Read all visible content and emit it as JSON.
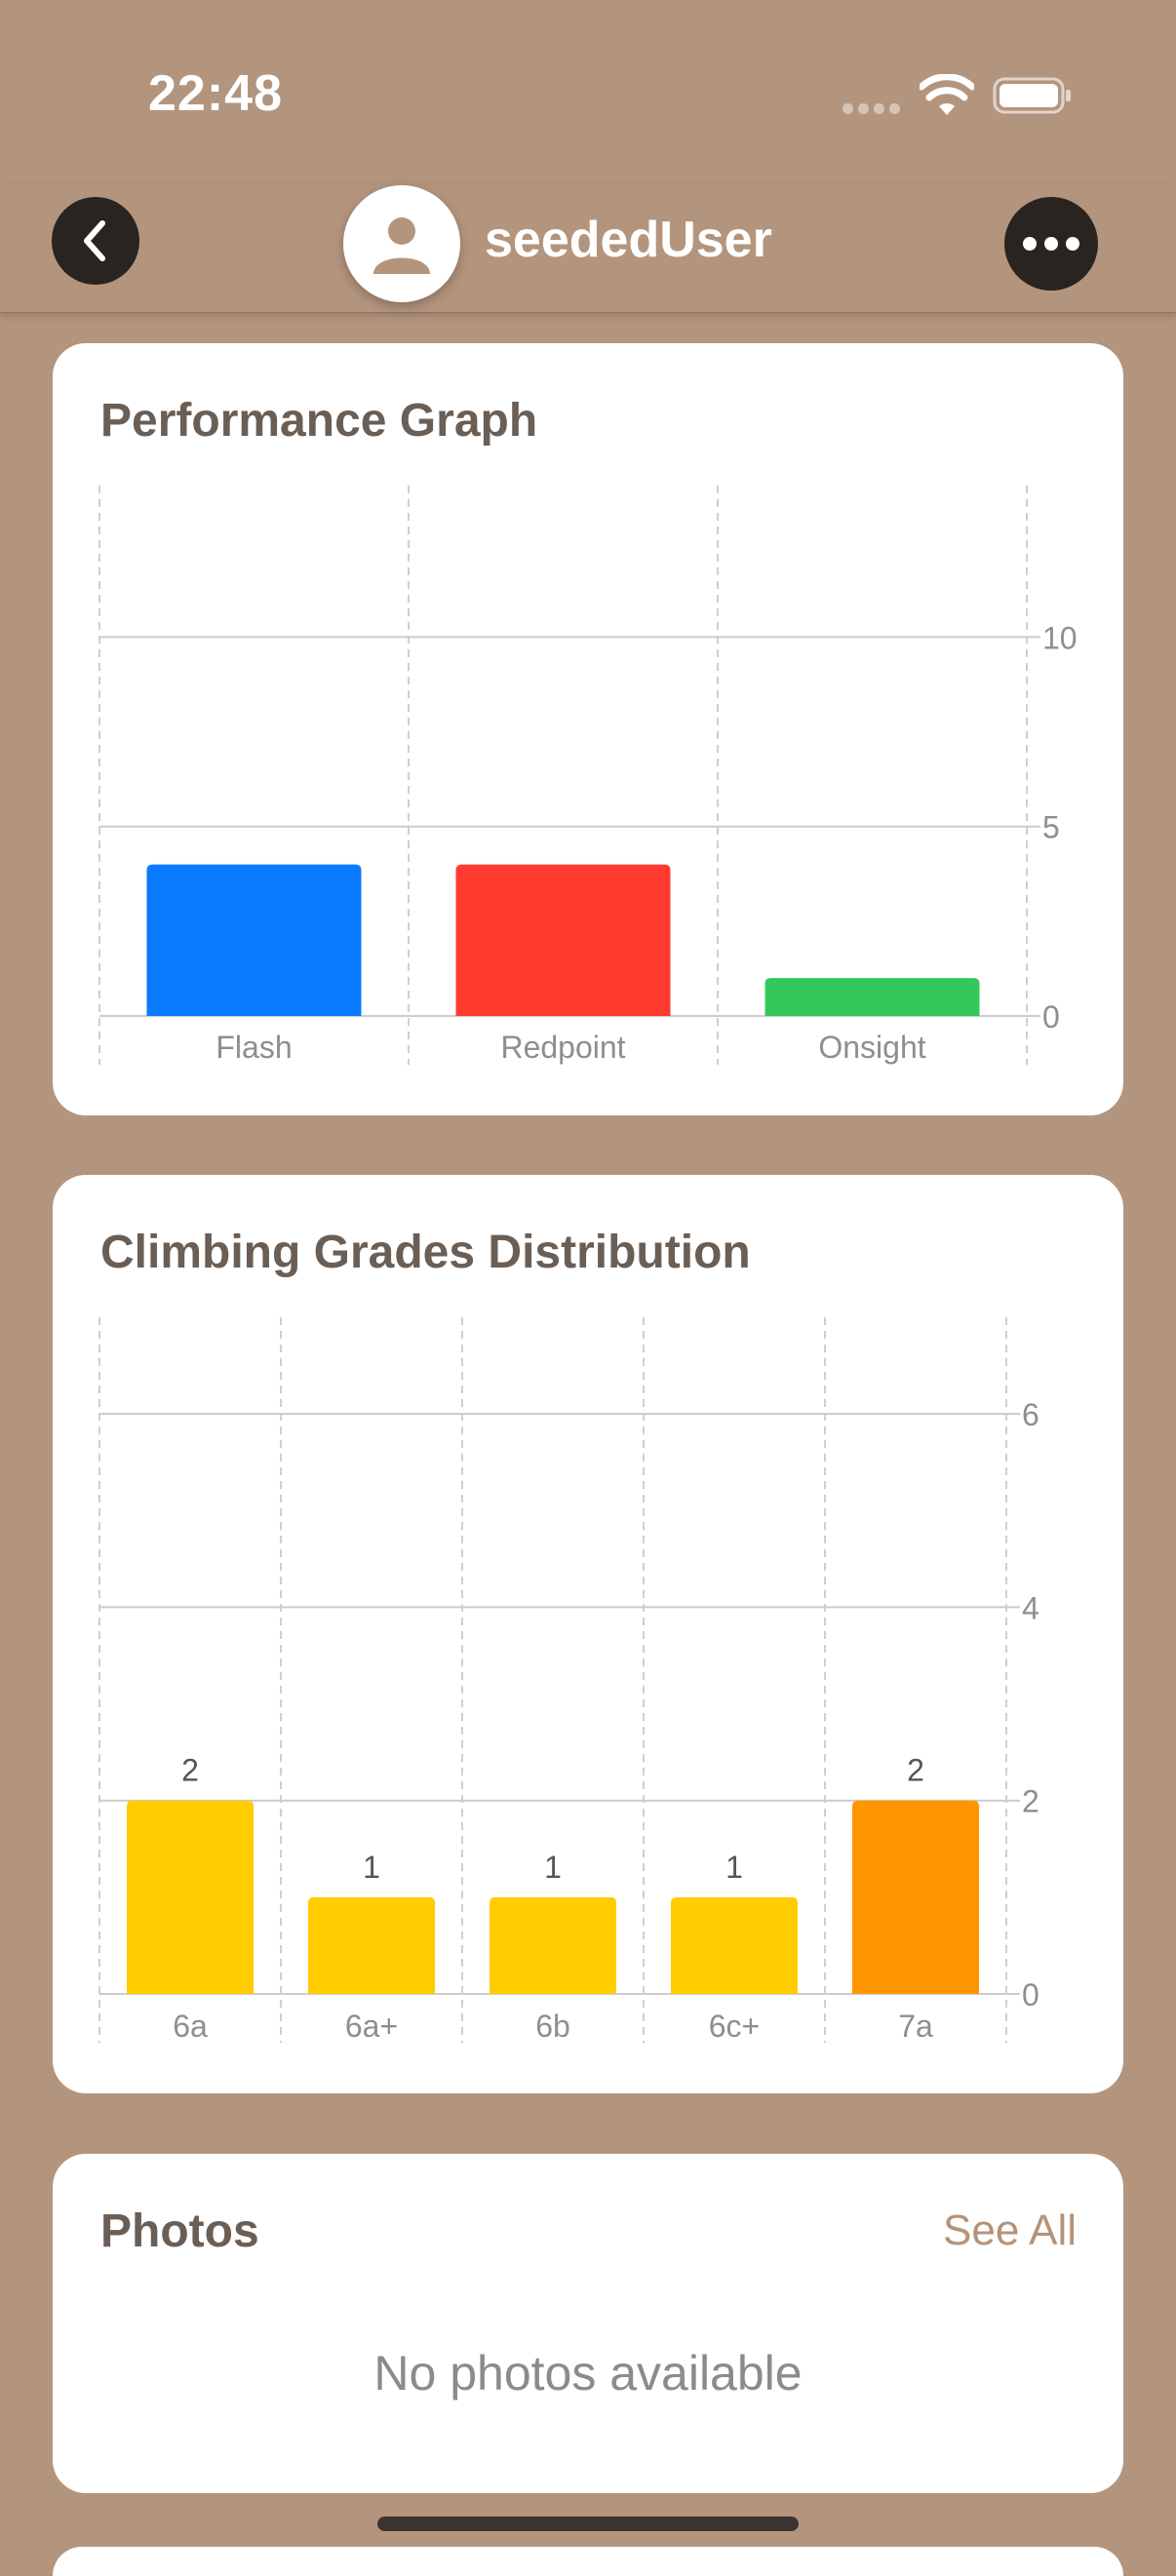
{
  "status_bar": {
    "time": "22:48",
    "icons": [
      "signal-dots-icon",
      "wifi-icon",
      "battery-icon"
    ]
  },
  "nav": {
    "username": "seededUser",
    "back_icon": "chevron-left-icon",
    "more_icon": "ellipsis-icon",
    "avatar_icon": "person-icon"
  },
  "performance_card": {
    "title": "Performance Graph",
    "chart_data": {
      "type": "bar",
      "categories": [
        "Flash",
        "Redpoint",
        "Onsight"
      ],
      "values": [
        4,
        4,
        1
      ],
      "colors": [
        "#0a7aff",
        "#ff3b30",
        "#34c759"
      ],
      "yticks": [
        0,
        5,
        10
      ],
      "ylim": [
        0,
        14
      ]
    }
  },
  "grades_card": {
    "title": "Climbing Grades Distribution",
    "chart_data": {
      "type": "bar",
      "categories": [
        "6a",
        "6a+",
        "6b",
        "6c+",
        "7a"
      ],
      "values": [
        2,
        1,
        1,
        1,
        2
      ],
      "colors": [
        "#ffcc00",
        "#ffcc00",
        "#ffcc00",
        "#ffcc00",
        "#ff9500"
      ],
      "data_labels": [
        "2",
        "1",
        "1",
        "1",
        "2"
      ],
      "yticks": [
        0,
        2,
        4,
        6
      ],
      "ylim": [
        0,
        7
      ]
    }
  },
  "photos_card": {
    "title": "Photos",
    "see_all_label": "See All",
    "empty_text": "No photos available"
  },
  "colors": {
    "background": "#b3957e",
    "card": "#ffffff",
    "accent": "#b39379"
  }
}
